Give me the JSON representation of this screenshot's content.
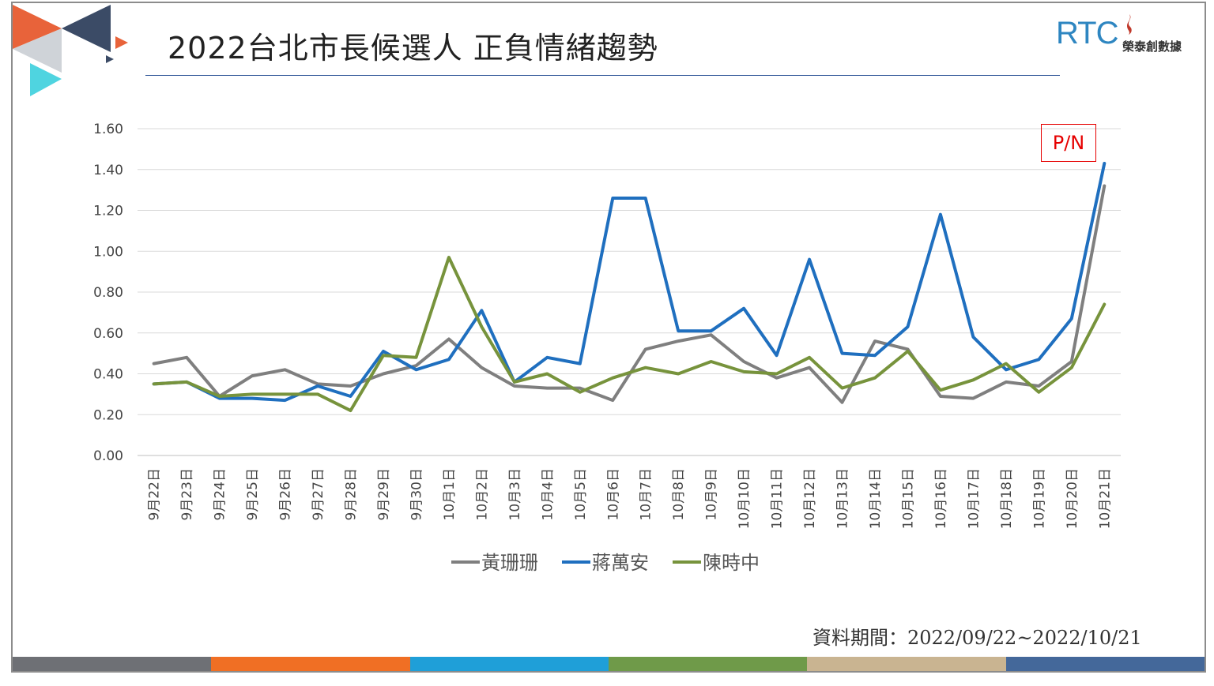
{
  "header": {
    "title": "2022台北市長候選人 正負情緒趨勢",
    "logo_text": "RTC",
    "logo_sub": "榮泰創數據"
  },
  "annotation": {
    "label": "P/N"
  },
  "footer": {
    "date_range": "資料期間：2022/09/22~2022/10/21"
  },
  "colors": {
    "bar": [
      "#6e7075",
      "#f06f24",
      "#1f9fd8",
      "#6f9a49",
      "#c9b491",
      "#44689a"
    ],
    "corner": [
      "#e8633a",
      "#3b4b66",
      "#cfd3d8",
      "#4fd4e0"
    ]
  },
  "chart_data": {
    "type": "line",
    "categories": [
      "9月22日",
      "9月23日",
      "9月24日",
      "9月25日",
      "9月26日",
      "9月27日",
      "9月28日",
      "9月29日",
      "9月30日",
      "10月1日",
      "10月2日",
      "10月3日",
      "10月4日",
      "10月5日",
      "10月6日",
      "10月7日",
      "10月8日",
      "10月9日",
      "10月10日",
      "10月11日",
      "10月12日",
      "10月13日",
      "10月14日",
      "10月15日",
      "10月16日",
      "10月17日",
      "10月18日",
      "10月19日",
      "10月20日",
      "10月21日"
    ],
    "ylim": [
      0,
      1.6
    ],
    "yticks": [
      "0.00",
      "0.20",
      "0.40",
      "0.60",
      "0.80",
      "1.00",
      "1.20",
      "1.40",
      "1.60"
    ],
    "grid": true,
    "legend_position": "bottom",
    "series": [
      {
        "name": "黃珊珊",
        "color": "#7f7f7f",
        "values": [
          0.45,
          0.48,
          0.29,
          0.39,
          0.42,
          0.35,
          0.34,
          0.4,
          0.44,
          0.57,
          0.43,
          0.34,
          0.33,
          0.33,
          0.27,
          0.52,
          0.56,
          0.59,
          0.46,
          0.38,
          0.43,
          0.26,
          0.56,
          0.52,
          0.29,
          0.28,
          0.36,
          0.34,
          0.46,
          1.32
        ]
      },
      {
        "name": "蔣萬安",
        "color": "#1f6fbf",
        "values": [
          0.35,
          0.36,
          0.28,
          0.28,
          0.27,
          0.34,
          0.29,
          0.51,
          0.42,
          0.47,
          0.71,
          0.36,
          0.48,
          0.45,
          1.26,
          1.26,
          0.61,
          0.61,
          0.72,
          0.49,
          0.96,
          0.5,
          0.49,
          0.63,
          1.18,
          0.58,
          0.42,
          0.47,
          0.67,
          1.43
        ]
      },
      {
        "name": "陳時中",
        "color": "#77933c",
        "values": [
          0.35,
          0.36,
          0.29,
          0.3,
          0.3,
          0.3,
          0.22,
          0.49,
          0.48,
          0.97,
          0.63,
          0.36,
          0.4,
          0.31,
          0.38,
          0.43,
          0.4,
          0.46,
          0.41,
          0.4,
          0.48,
          0.33,
          0.38,
          0.51,
          0.32,
          0.37,
          0.45,
          0.31,
          0.43,
          0.74
        ]
      }
    ]
  }
}
